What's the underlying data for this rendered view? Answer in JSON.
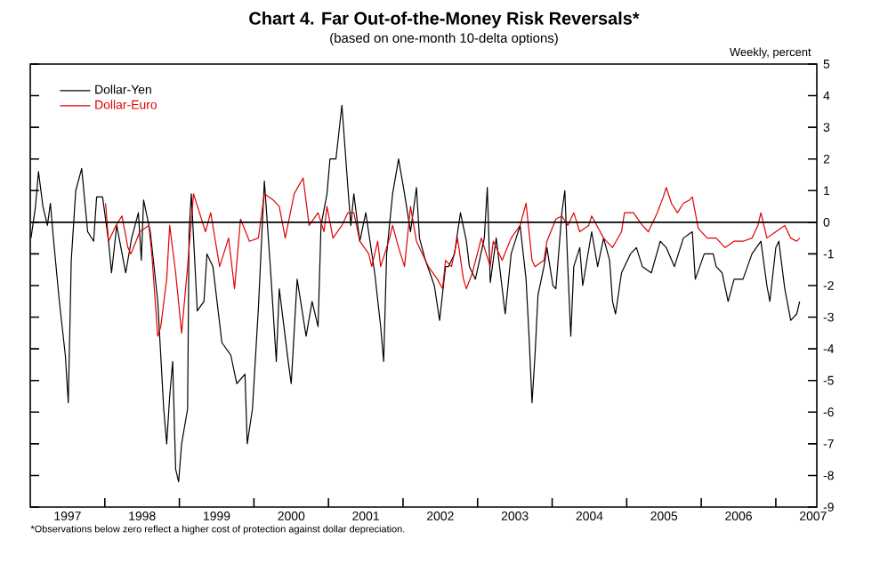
{
  "chart_data": {
    "type": "line",
    "title": "Chart 4. Far Out-of-the-Money Risk Reversals*",
    "subtitle": "(based on one-month 10-delta options)",
    "ylabel": "Weekly, percent",
    "annotations": [
      "*Observations below zero reflect a higher cost of protection against dollar depreciation."
    ],
    "xlim": [
      1997,
      2007.55
    ],
    "ylim": [
      -9,
      5
    ],
    "xticks": [
      {
        "value": 1997.5,
        "label": "1997"
      },
      {
        "value": 1998,
        "label": null
      },
      {
        "value": 1998.5,
        "label": "1998"
      },
      {
        "value": 1999,
        "label": null
      },
      {
        "value": 1999.5,
        "label": "1999"
      },
      {
        "value": 2000,
        "label": null
      },
      {
        "value": 2000.5,
        "label": "2000"
      },
      {
        "value": 2001,
        "label": null
      },
      {
        "value": 2001.5,
        "label": "2001"
      },
      {
        "value": 2002,
        "label": null
      },
      {
        "value": 2002.5,
        "label": "2002"
      },
      {
        "value": 2003,
        "label": null
      },
      {
        "value": 2003.5,
        "label": "2003"
      },
      {
        "value": 2004,
        "label": null
      },
      {
        "value": 2004.5,
        "label": "2004"
      },
      {
        "value": 2005,
        "label": null
      },
      {
        "value": 2005.5,
        "label": "2005"
      },
      {
        "value": 2006,
        "label": null
      },
      {
        "value": 2006.5,
        "label": "2006"
      },
      {
        "value": 2007,
        "label": null
      },
      {
        "value": 2007.5,
        "label": "2007"
      }
    ],
    "yticks": [
      -9,
      -8,
      -7,
      -6,
      -5,
      -4,
      -3,
      -2,
      -1,
      0,
      1,
      2,
      3,
      4,
      5
    ],
    "ref_lines": [
      {
        "axis": "y",
        "value": 0,
        "color": "#000000"
      }
    ],
    "legend": "top left",
    "marker": "none",
    "line_style": "solid",
    "series": [
      {
        "name": "Dollar-Yen",
        "color": "#000000",
        "x": [
          1997.01,
          1997.07,
          1997.11,
          1997.17,
          1997.23,
          1997.27,
          1997.31,
          1997.39,
          1997.47,
          1997.51,
          1997.55,
          1997.61,
          1997.69,
          1997.77,
          1997.85,
          1997.89,
          1997.97,
          1998.05,
          1998.09,
          1998.16,
          1998.28,
          1998.36,
          1998.45,
          1998.49,
          1998.52,
          1998.61,
          1998.71,
          1998.79,
          1998.83,
          1998.87,
          1998.91,
          1998.95,
          1998.99,
          1999.03,
          1999.11,
          1999.13,
          1999.16,
          1999.24,
          1999.33,
          1999.37,
          1999.45,
          1999.57,
          1999.69,
          1999.77,
          1999.88,
          1999.91,
          1999.98,
          2000.06,
          2000.14,
          2000.22,
          2000.3,
          2000.34,
          2000.46,
          2000.5,
          2000.58,
          2000.7,
          2000.78,
          2000.86,
          2000.9,
          2000.98,
          2001.02,
          2001.1,
          2001.18,
          2001.26,
          2001.3,
          2001.34,
          2001.42,
          2001.5,
          2001.62,
          2001.7,
          2001.74,
          2001.78,
          2001.86,
          2001.94,
          2002.02,
          2002.1,
          2002.18,
          2002.22,
          2002.3,
          2002.42,
          2002.49,
          2002.57,
          2002.61,
          2002.69,
          2002.77,
          2002.85,
          2002.89,
          2002.97,
          2003.09,
          2003.13,
          2003.17,
          2003.25,
          2003.37,
          2003.45,
          2003.57,
          2003.65,
          2003.69,
          2003.73,
          2003.77,
          2003.81,
          2003.89,
          2003.93,
          2004.01,
          2004.05,
          2004.13,
          2004.17,
          2004.21,
          2004.25,
          2004.29,
          2004.37,
          2004.41,
          2004.53,
          2004.61,
          2004.69,
          2004.77,
          2004.81,
          2004.85,
          2004.93,
          2005.05,
          2005.13,
          2005.21,
          2005.33,
          2005.45,
          2005.53,
          2005.64,
          2005.76,
          2005.88,
          2005.92,
          2006.04,
          2006.16,
          2006.2,
          2006.28,
          2006.36,
          2006.44,
          2006.56,
          2006.68,
          2006.8,
          2006.88,
          2006.92,
          2007.0,
          2007.04,
          2007.12,
          2007.2,
          2007.28,
          2007.32
        ],
        "values": [
          -0.5,
          0.5,
          1.6,
          0.5,
          -0.1,
          0.6,
          -0.5,
          -2.5,
          -4.2,
          -5.7,
          -1.2,
          1.0,
          1.7,
          -0.3,
          -0.6,
          0.8,
          0.8,
          -0.6,
          -1.6,
          -0.1,
          -1.6,
          -0.5,
          0.3,
          -1.2,
          0.7,
          -0.3,
          -2.5,
          -5.9,
          -7.0,
          -5.5,
          -4.4,
          -7.8,
          -8.2,
          -7.0,
          -5.9,
          -0.3,
          0.9,
          -2.8,
          -2.5,
          -1.0,
          -1.4,
          -3.8,
          -4.2,
          -5.1,
          -4.8,
          -7.0,
          -5.9,
          -2.7,
          1.3,
          -1.4,
          -4.4,
          -2.1,
          -4.4,
          -5.1,
          -1.8,
          -3.6,
          -2.5,
          -3.3,
          -0.1,
          0.9,
          2.0,
          2.0,
          3.7,
          1.1,
          -0.1,
          0.9,
          -0.6,
          0.3,
          -1.6,
          -3.3,
          -4.4,
          -1.0,
          0.9,
          2.0,
          0.9,
          -0.3,
          1.1,
          -0.5,
          -1.2,
          -2.0,
          -3.1,
          -1.4,
          -1.4,
          -1.0,
          0.3,
          -0.6,
          -1.4,
          -1.8,
          -0.5,
          1.1,
          -1.9,
          -0.5,
          -2.9,
          -1.0,
          -0.1,
          -1.8,
          -3.6,
          -5.7,
          -4.2,
          -2.3,
          -1.4,
          -0.8,
          -2.0,
          -2.1,
          0.3,
          1.0,
          -1.4,
          -3.6,
          -1.4,
          -0.8,
          -2.0,
          -0.3,
          -1.4,
          -0.5,
          -1.2,
          -2.5,
          -2.9,
          -1.6,
          -1.0,
          -0.8,
          -1.4,
          -1.6,
          -0.6,
          -0.8,
          -1.4,
          -0.5,
          -0.3,
          -1.8,
          -1.0,
          -1.0,
          -1.4,
          -1.6,
          -2.5,
          -1.8,
          -1.8,
          -1.0,
          -0.6,
          -2.0,
          -2.5,
          -0.8,
          -0.6,
          -2.1,
          -3.1,
          -2.9,
          -2.5
        ]
      },
      {
        "name": "Dollar-Euro",
        "color": "#e00000",
        "x": [
          1998.01,
          1998.05,
          1998.15,
          1998.23,
          1998.31,
          1998.35,
          1998.47,
          1998.59,
          1998.63,
          1998.71,
          1998.75,
          1998.83,
          1998.87,
          1998.95,
          1999.03,
          1999.11,
          1999.19,
          1999.27,
          1999.35,
          1999.42,
          1999.54,
          1999.66,
          1999.74,
          1999.82,
          1999.94,
          2000.06,
          2000.14,
          2000.26,
          2000.34,
          2000.42,
          2000.54,
          2000.66,
          2000.74,
          2000.86,
          2000.94,
          2000.98,
          2001.06,
          2001.18,
          2001.26,
          2001.34,
          2001.42,
          2001.54,
          2001.58,
          2001.66,
          2001.7,
          2001.82,
          2001.86,
          2001.94,
          2002.02,
          2002.1,
          2002.18,
          2002.26,
          2002.34,
          2002.46,
          2002.53,
          2002.57,
          2002.65,
          2002.73,
          2002.81,
          2002.85,
          2002.93,
          2003.05,
          2003.17,
          2003.21,
          2003.33,
          2003.45,
          2003.57,
          2003.65,
          2003.73,
          2003.77,
          2003.89,
          2003.93,
          2004.05,
          2004.13,
          2004.21,
          2004.29,
          2004.37,
          2004.49,
          2004.53,
          2004.69,
          2004.81,
          2004.93,
          2004.97,
          2005.09,
          2005.21,
          2005.29,
          2005.41,
          2005.49,
          2005.53,
          2005.6,
          2005.68,
          2005.76,
          2005.84,
          2005.88,
          2005.96,
          2006.08,
          2006.2,
          2006.32,
          2006.44,
          2006.56,
          2006.68,
          2006.76,
          2006.8,
          2006.88,
          2007.0,
          2007.12,
          2007.2,
          2007.28,
          2007.32
        ],
        "values": [
          0.6,
          -0.6,
          -0.1,
          0.2,
          -0.8,
          -1.0,
          -0.3,
          -0.1,
          -1.0,
          -3.6,
          -3.3,
          -1.8,
          -0.1,
          -1.6,
          -3.5,
          -1.4,
          0.9,
          0.3,
          -0.3,
          0.3,
          -1.4,
          -0.5,
          -2.1,
          0.1,
          -0.6,
          -0.5,
          0.9,
          0.7,
          0.5,
          -0.5,
          0.9,
          1.4,
          -0.1,
          0.3,
          -0.3,
          0.5,
          -0.5,
          -0.1,
          0.3,
          0.3,
          -0.6,
          -1.0,
          -1.4,
          -0.6,
          -1.4,
          -0.5,
          -0.1,
          -0.8,
          -1.4,
          0.5,
          -0.6,
          -1.0,
          -1.4,
          -1.8,
          -2.1,
          -1.2,
          -1.4,
          -0.5,
          -1.8,
          -2.1,
          -1.6,
          -0.5,
          -1.4,
          -0.6,
          -1.2,
          -0.5,
          -0.1,
          0.6,
          -1.2,
          -1.4,
          -1.2,
          -0.6,
          0.1,
          0.2,
          -0.1,
          0.3,
          -0.3,
          -0.1,
          0.2,
          -0.5,
          -0.8,
          -0.3,
          0.3,
          0.3,
          -0.1,
          -0.3,
          0.3,
          0.8,
          1.1,
          0.6,
          0.3,
          0.6,
          0.7,
          0.8,
          -0.2,
          -0.5,
          -0.5,
          -0.8,
          -0.6,
          -0.6,
          -0.5,
          -0.1,
          0.3,
          -0.5,
          -0.3,
          -0.1,
          -0.5,
          -0.6,
          -0.5
        ]
      }
    ]
  }
}
